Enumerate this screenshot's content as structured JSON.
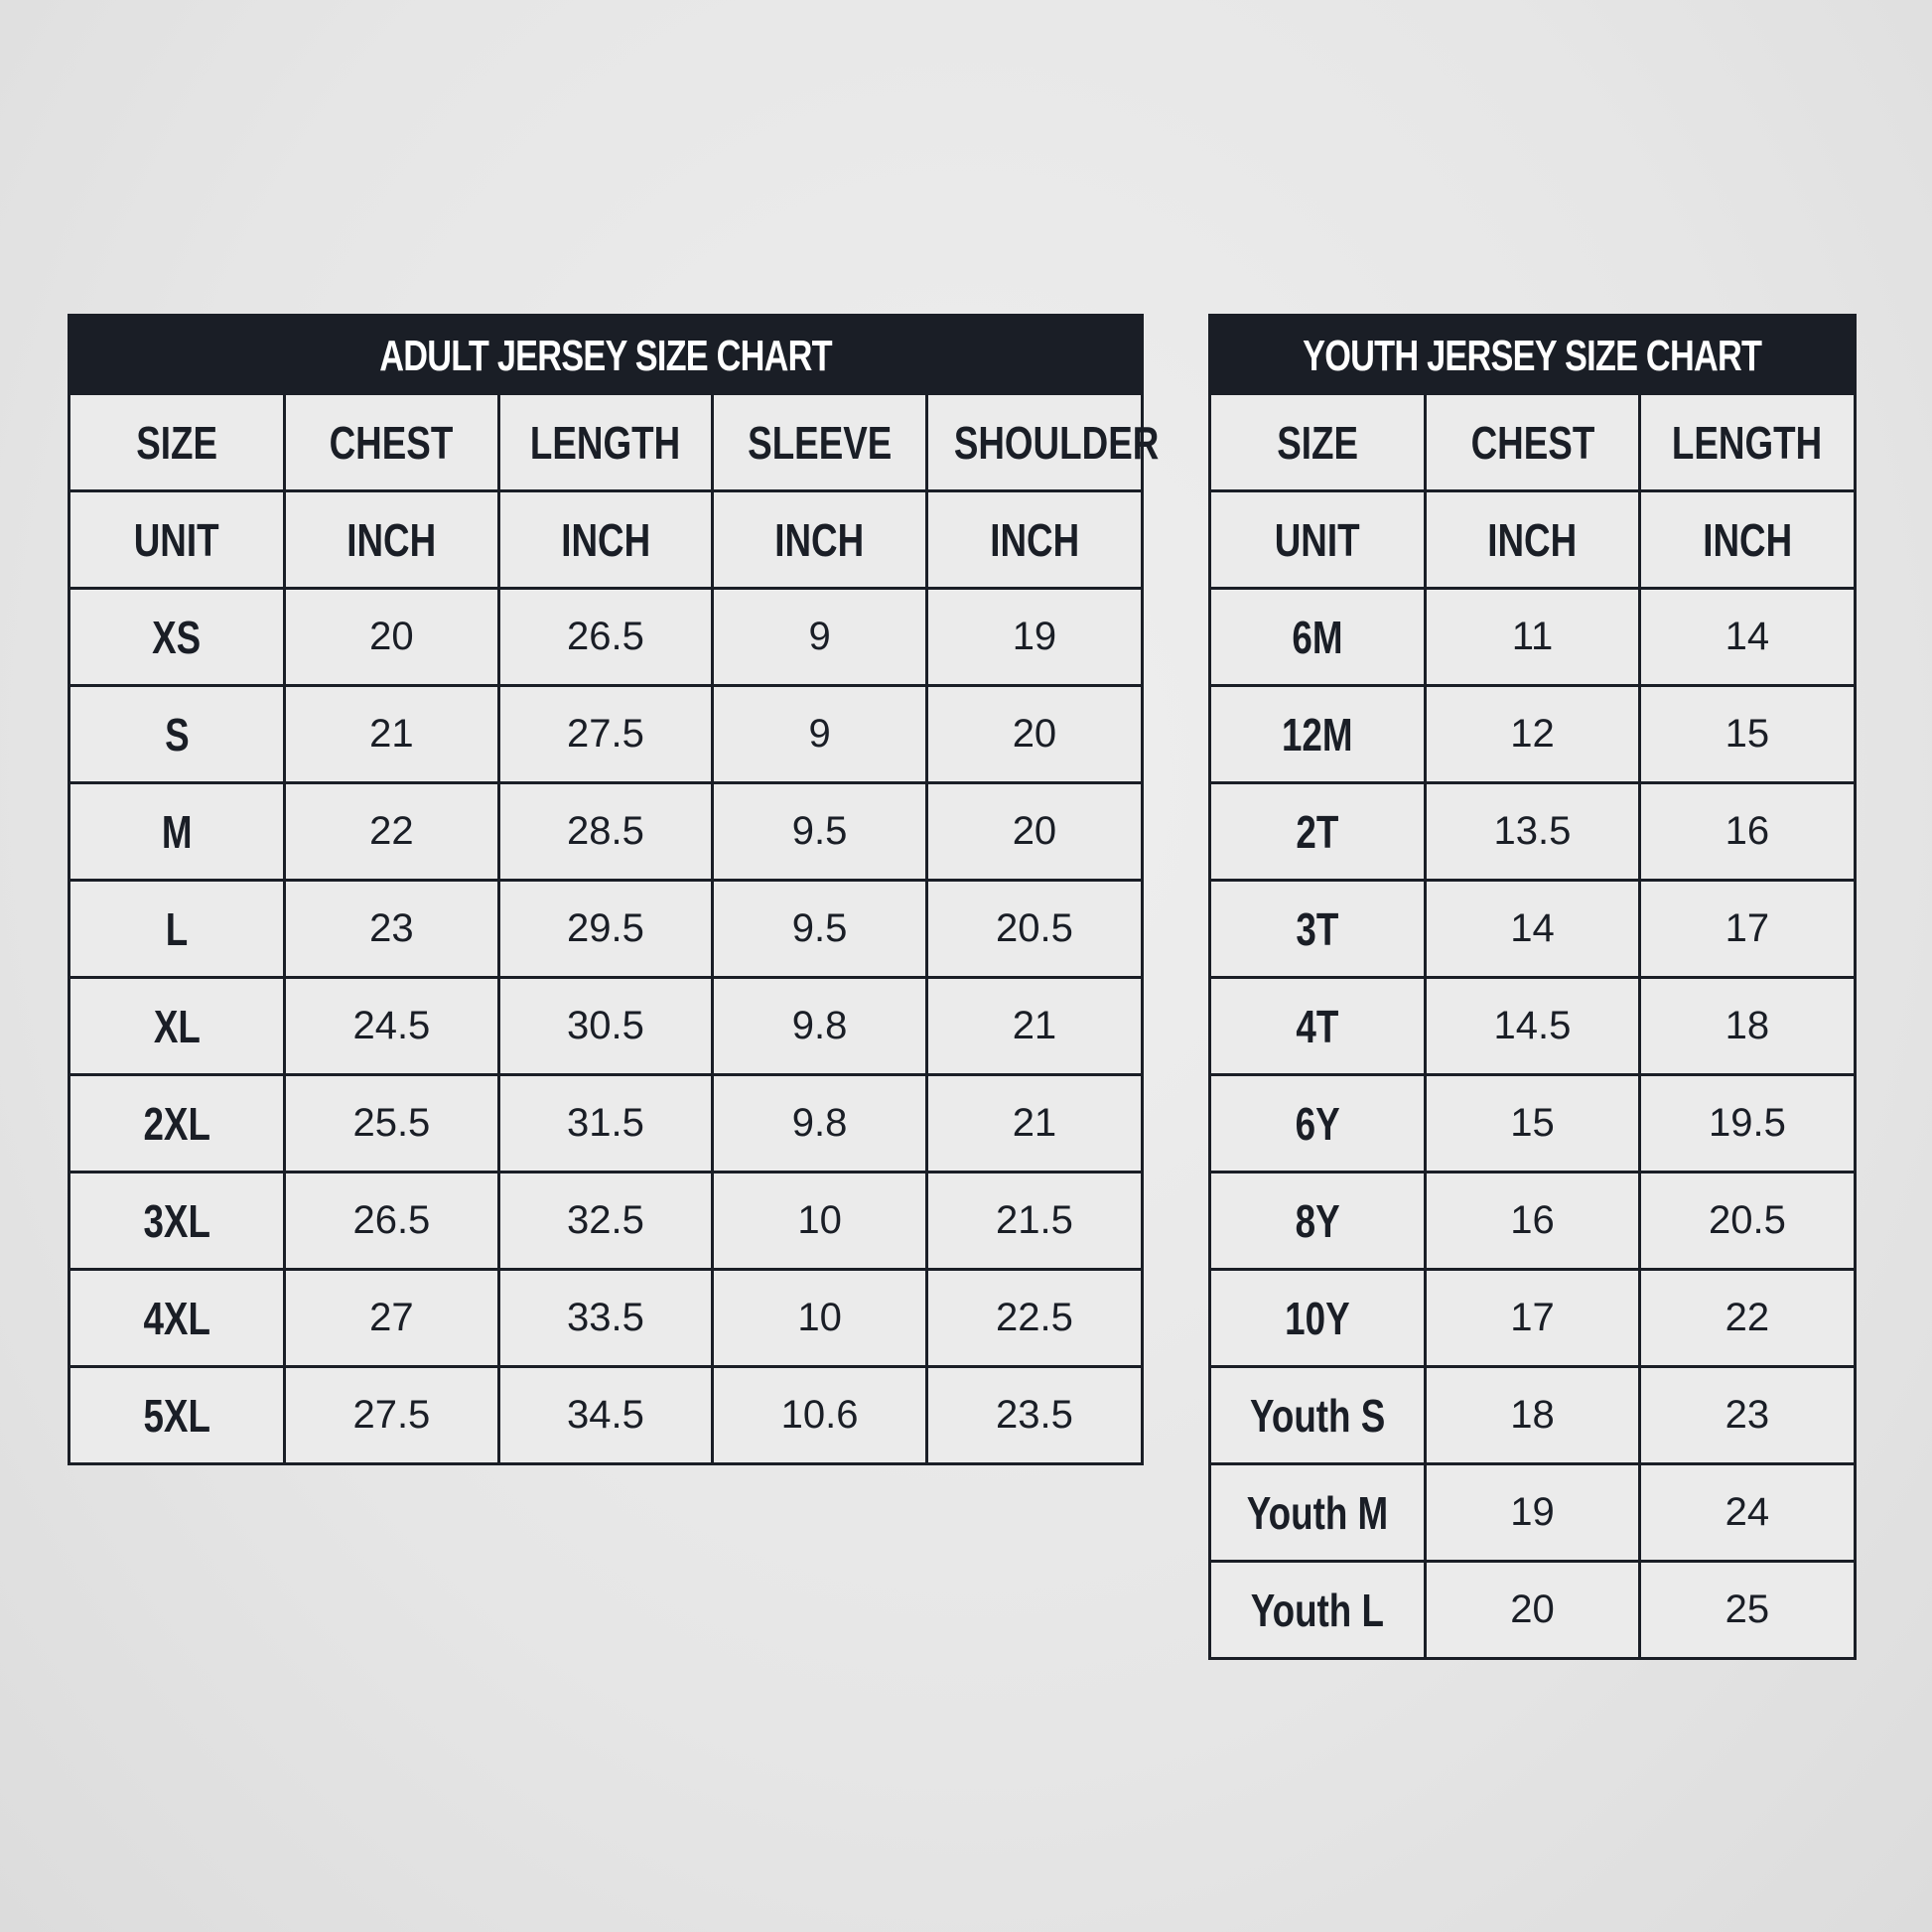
{
  "adult": {
    "title": "ADULT JERSEY SIZE CHART",
    "headers": [
      "SIZE",
      "CHEST",
      "LENGTH",
      "SLEEVE",
      "SHOULDER"
    ],
    "units": [
      "UNIT",
      "INCH",
      "INCH",
      "INCH",
      "INCH"
    ],
    "rows": [
      [
        "XS",
        "20",
        "26.5",
        "9",
        "19"
      ],
      [
        "S",
        "21",
        "27.5",
        "9",
        "20"
      ],
      [
        "M",
        "22",
        "28.5",
        "9.5",
        "20"
      ],
      [
        "L",
        "23",
        "29.5",
        "9.5",
        "20.5"
      ],
      [
        "XL",
        "24.5",
        "30.5",
        "9.8",
        "21"
      ],
      [
        "2XL",
        "25.5",
        "31.5",
        "9.8",
        "21"
      ],
      [
        "3XL",
        "26.5",
        "32.5",
        "10",
        "21.5"
      ],
      [
        "4XL",
        "27",
        "33.5",
        "10",
        "22.5"
      ],
      [
        "5XL",
        "27.5",
        "34.5",
        "10.6",
        "23.5"
      ]
    ]
  },
  "youth": {
    "title": "YOUTH JERSEY SIZE CHART",
    "headers": [
      "SIZE",
      "CHEST",
      "LENGTH"
    ],
    "units": [
      "UNIT",
      "INCH",
      "INCH"
    ],
    "rows": [
      [
        "6M",
        "11",
        "14"
      ],
      [
        "12M",
        "12",
        "15"
      ],
      [
        "2T",
        "13.5",
        "16"
      ],
      [
        "3T",
        "14",
        "17"
      ],
      [
        "4T",
        "14.5",
        "18"
      ],
      [
        "6Y",
        "15",
        "19.5"
      ],
      [
        "8Y",
        "16",
        "20.5"
      ],
      [
        "10Y",
        "17",
        "22"
      ],
      [
        "Youth S",
        "18",
        "23"
      ],
      [
        "Youth M",
        "19",
        "24"
      ],
      [
        "Youth L",
        "20",
        "25"
      ]
    ]
  },
  "colors": {
    "header_bg": "#1a1e26",
    "cell_bg": "#ebebeb",
    "text": "#1a1e26"
  }
}
